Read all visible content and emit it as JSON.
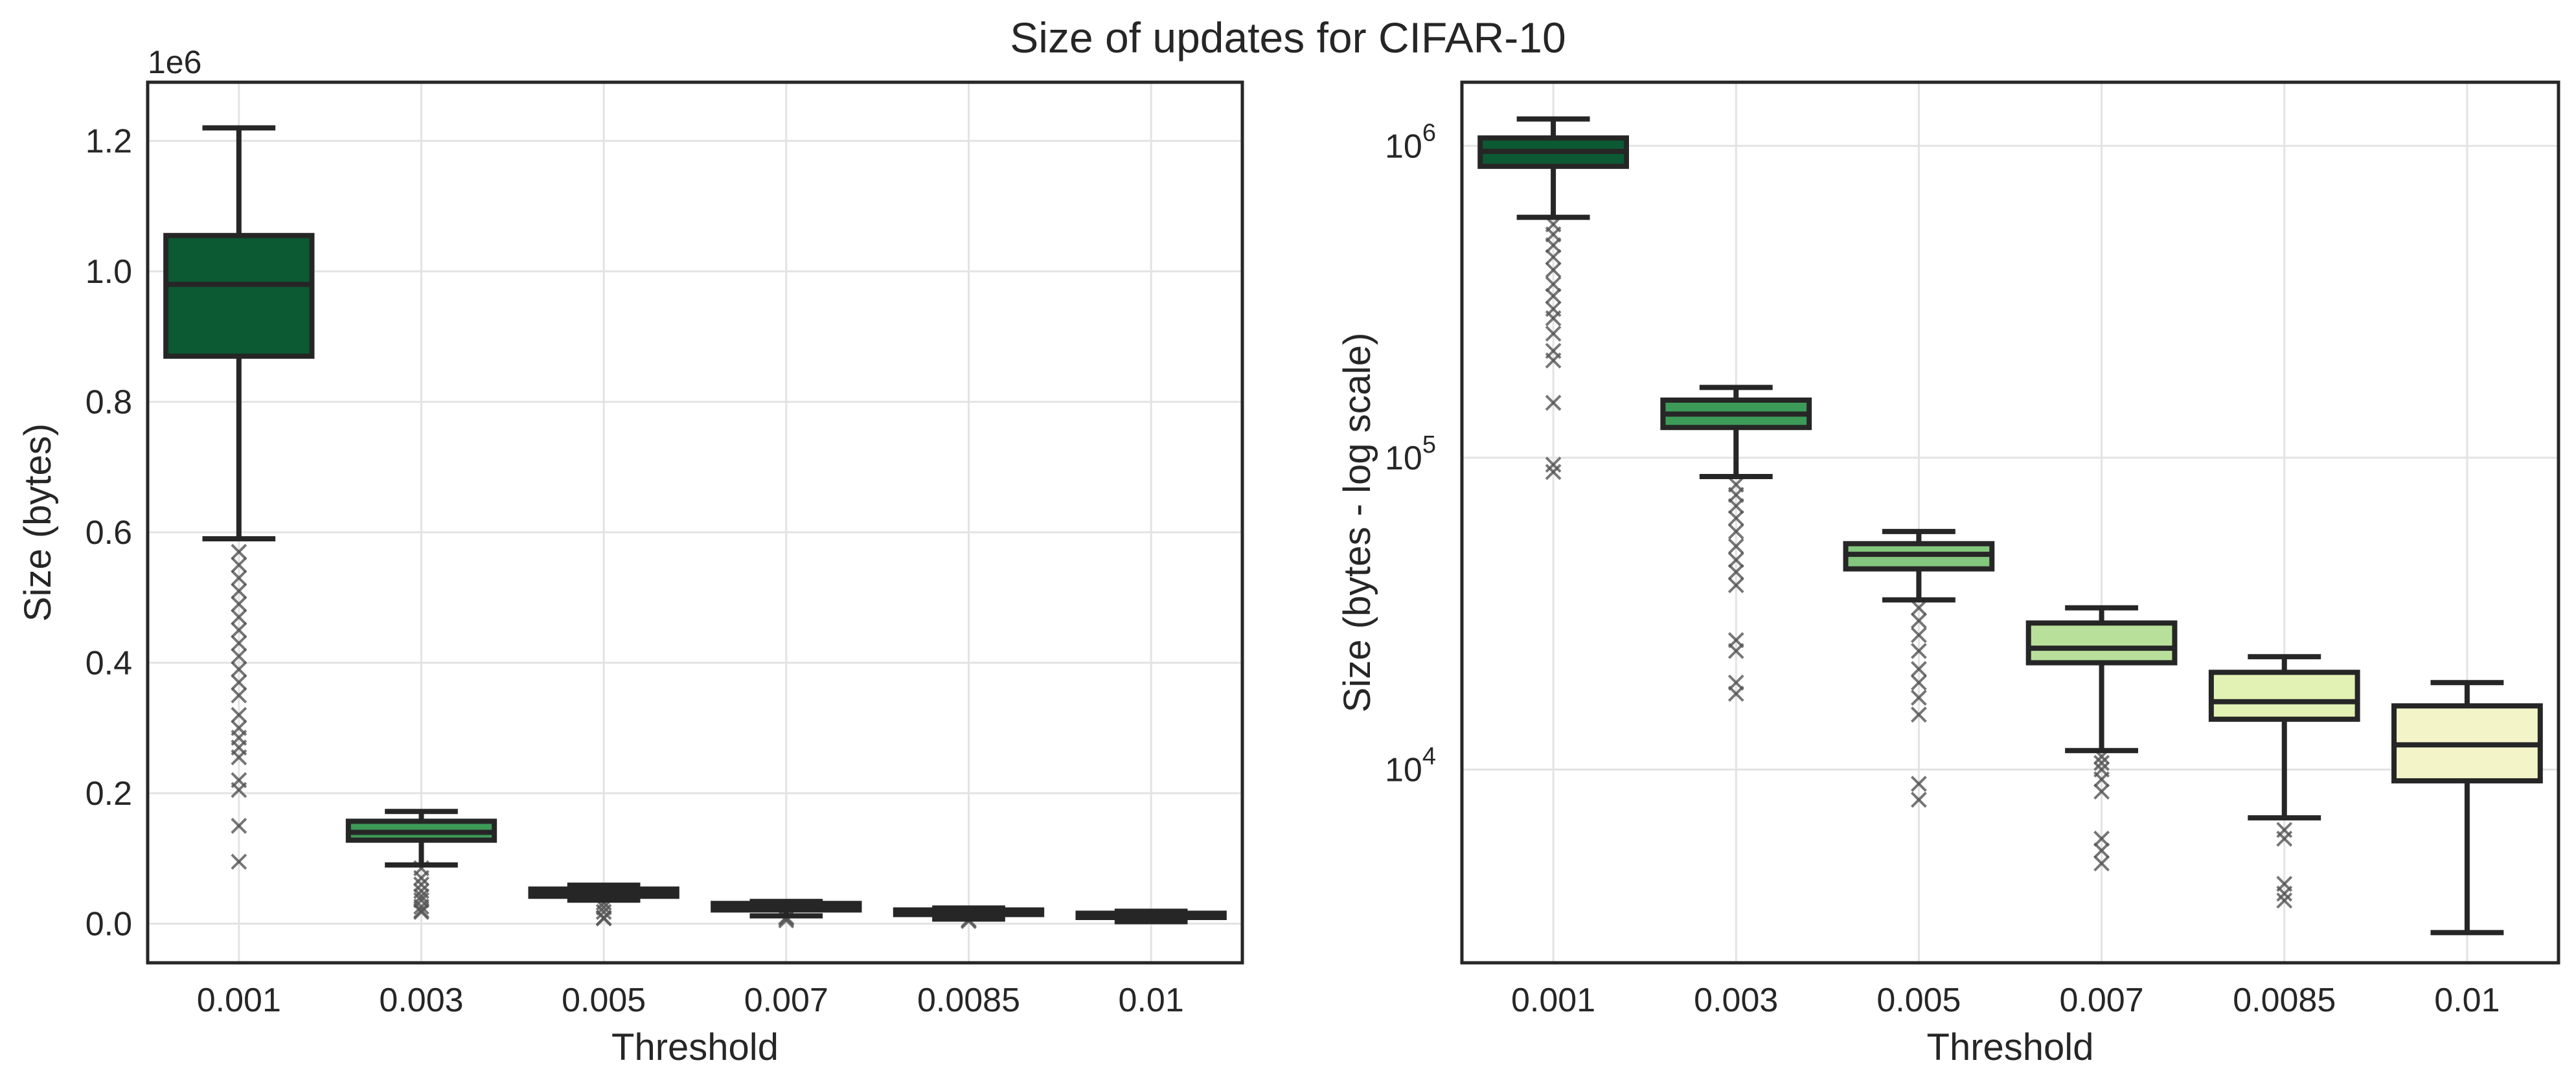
{
  "figure": {
    "title": "Size of updates for CIFAR-10"
  },
  "chart_data": [
    {
      "type": "box",
      "xlabel": "Threshold",
      "ylabel": "Size (bytes)",
      "y_offset_label": "1e6",
      "y_scale": "linear",
      "ylim": [
        -60000,
        1290000
      ],
      "yticks": [
        0,
        200000,
        400000,
        600000,
        800000,
        1000000,
        1200000
      ],
      "ytick_labels": [
        "0.0",
        "0.2",
        "0.4",
        "0.6",
        "0.8",
        "1.0",
        "1.2"
      ],
      "grid": true,
      "categories": [
        "0.001",
        "0.003",
        "0.005",
        "0.007",
        "0.0085",
        "0.01"
      ],
      "colors": [
        "#0b5a33",
        "#3d9b58",
        "#83c77f",
        "#b8e09b",
        "#e2f2b4",
        "#f3f5c9"
      ],
      "boxes": [
        {
          "whisker_low": 590000,
          "q1": 870000,
          "median": 980000,
          "q3": 1055000,
          "whisker_high": 1220000,
          "outliers": [
            570000,
            550000,
            530000,
            510000,
            490000,
            470000,
            450000,
            430000,
            410000,
            390000,
            370000,
            350000,
            320000,
            300000,
            285000,
            270000,
            255000,
            220000,
            205000,
            150000,
            95000
          ]
        },
        {
          "whisker_low": 90000,
          "q1": 128000,
          "median": 140000,
          "q3": 157000,
          "whisker_high": 172000,
          "outliers": [
            85000,
            70000,
            60000,
            50000,
            42000,
            36000,
            26000,
            20000,
            18000
          ]
        },
        {
          "whisker_low": 36000,
          "q1": 42000,
          "median": 47000,
          "q3": 53000,
          "whisker_high": 59000,
          "outliers": [
            32000,
            25000,
            18000,
            9000,
            8000
          ]
        },
        {
          "whisker_low": 12000,
          "q1": 21000,
          "median": 25000,
          "q3": 31000,
          "whisker_high": 34000,
          "outliers": [
            10000,
            8000,
            5000
          ]
        },
        {
          "whisker_low": 7000,
          "q1": 14000,
          "median": 16000,
          "q3": 21000,
          "whisker_high": 24000,
          "outliers": [
            6000,
            4000
          ]
        },
        {
          "whisker_low": 3000,
          "q1": 9500,
          "median": 12000,
          "q3": 16000,
          "whisker_high": 19000,
          "outliers": []
        }
      ]
    },
    {
      "type": "box",
      "xlabel": "Threshold",
      "ylabel": "Size (bytes - log scale)",
      "y_scale": "log",
      "ylim": [
        2400,
        1600000
      ],
      "yticks": [
        10000,
        100000,
        1000000
      ],
      "ytick_labels": [
        "10^4",
        "10^5",
        "10^6"
      ],
      "grid": true,
      "categories": [
        "0.001",
        "0.003",
        "0.005",
        "0.007",
        "0.0085",
        "0.01"
      ],
      "colors": [
        "#0b5a33",
        "#3d9b58",
        "#83c77f",
        "#b8e09b",
        "#e2f2b4",
        "#f3f5c9"
      ],
      "boxes": [
        {
          "whisker_low": 590000,
          "q1": 860000,
          "median": 960000,
          "q3": 1060000,
          "whisker_high": 1220000,
          "outliers": [
            560000,
            520000,
            480000,
            440000,
            400000,
            360000,
            330000,
            300000,
            280000,
            250000,
            220000,
            205000,
            150000,
            95000,
            90000
          ]
        },
        {
          "whisker_low": 87000,
          "q1": 125000,
          "median": 138000,
          "q3": 153000,
          "whisker_high": 168000,
          "outliers": [
            82000,
            76000,
            70000,
            64000,
            58000,
            52000,
            47000,
            43000,
            39000,
            26000,
            24000,
            19000,
            17500
          ]
        },
        {
          "whisker_low": 35000,
          "q1": 44000,
          "median": 49000,
          "q3": 53000,
          "whisker_high": 58000,
          "outliers": [
            33000,
            30000,
            27000,
            24000,
            21000,
            19000,
            17000,
            15000,
            9000,
            8000
          ]
        },
        {
          "whisker_low": 11500,
          "q1": 22000,
          "median": 24500,
          "q3": 29500,
          "whisker_high": 33000,
          "outliers": [
            11000,
            10500,
            10000,
            9300,
            8500,
            6000,
            5500,
            5000
          ]
        },
        {
          "whisker_low": 7000,
          "q1": 14500,
          "median": 16500,
          "q3": 20500,
          "whisker_high": 23000,
          "outliers": [
            6400,
            6000,
            4300,
            4000,
            3800
          ]
        },
        {
          "whisker_low": 3000,
          "q1": 9200,
          "median": 12000,
          "q3": 16000,
          "whisker_high": 19000,
          "outliers": []
        }
      ]
    }
  ]
}
